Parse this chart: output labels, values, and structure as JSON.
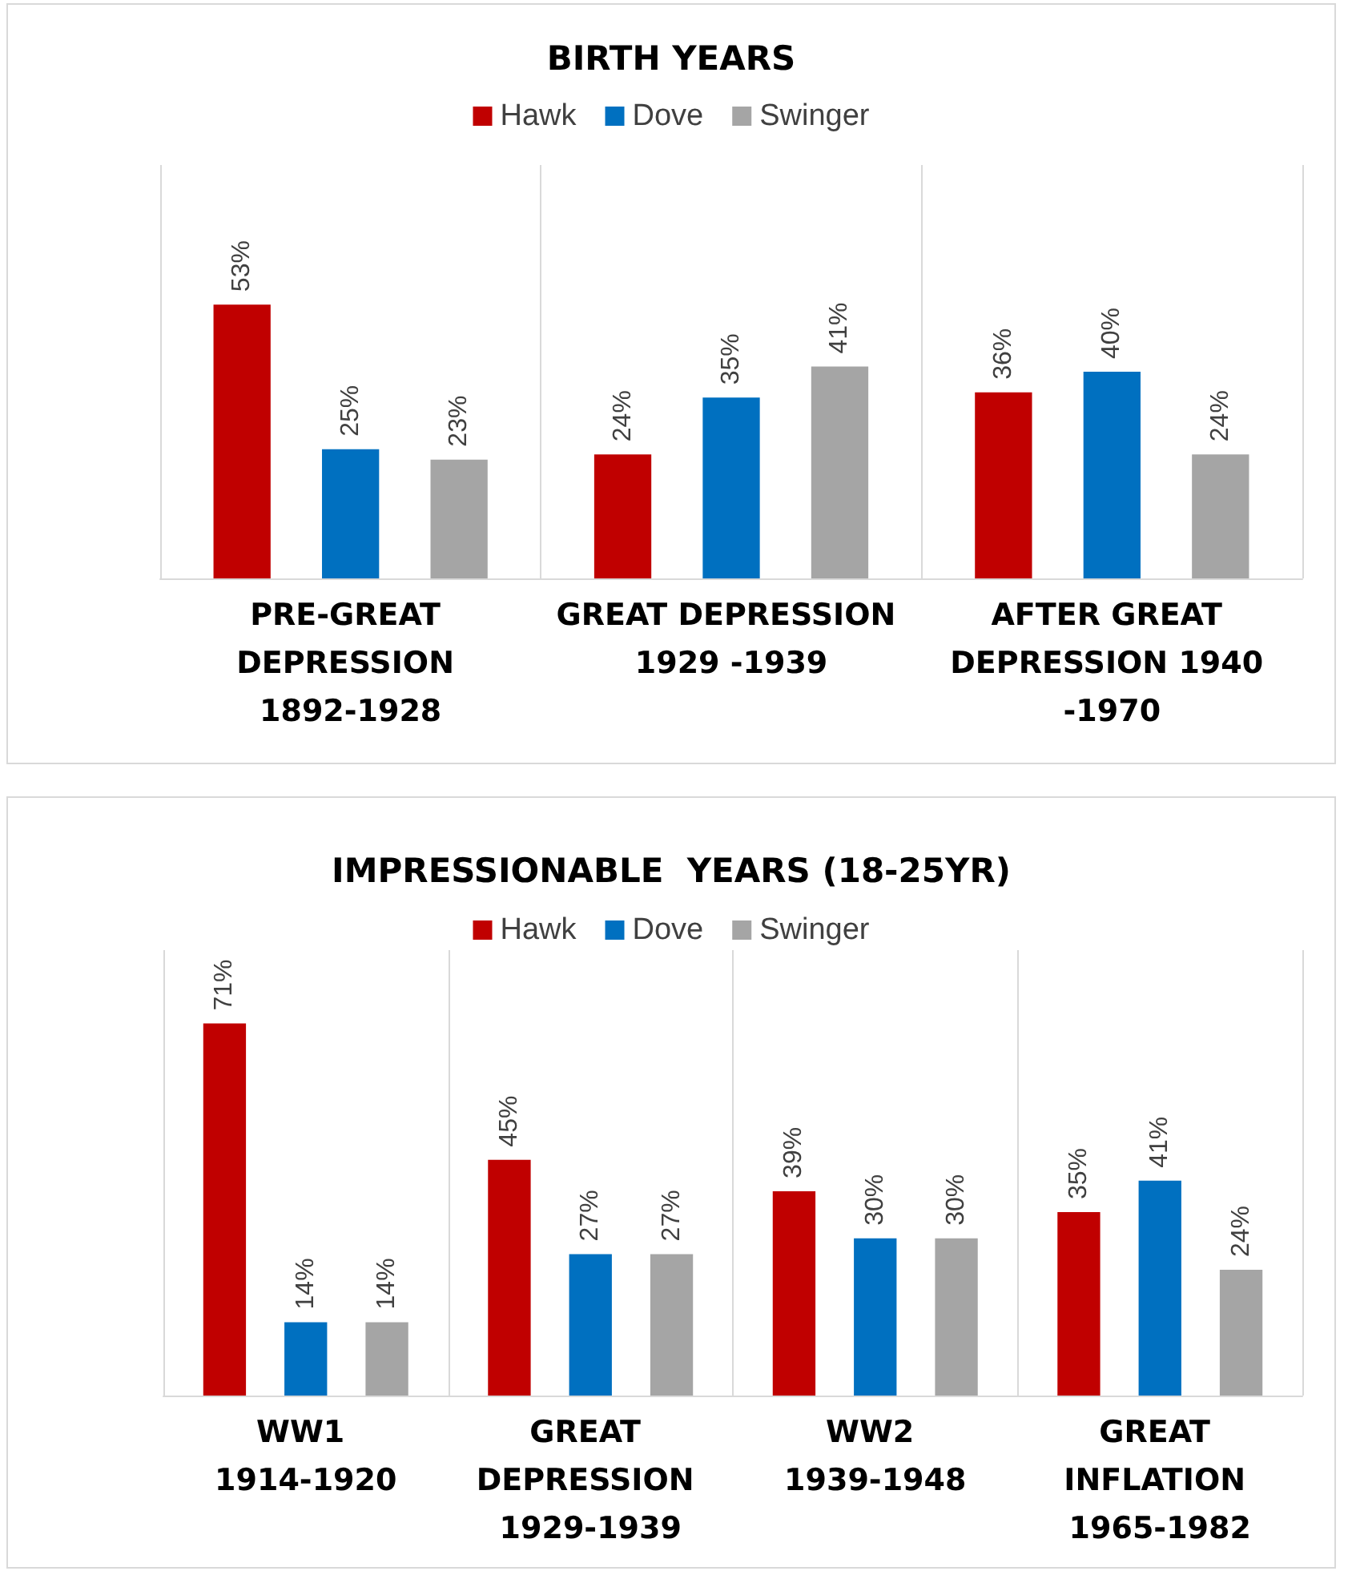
{
  "chart_data": [
    {
      "type": "bar",
      "title": "BIRTH YEARS",
      "categories": [
        "PRE-GREAT DEPRESSION 1892-1928",
        "GREAT DEPRESSION 1929 -1939",
        "AFTER GREAT DEPRESSION 1940 -1970"
      ],
      "series": [
        {
          "name": "Hawk",
          "color": "#c00000",
          "values": [
            53,
            24,
            36
          ],
          "value_labels": [
            "53%",
            "24%",
            "36%"
          ]
        },
        {
          "name": "Dove",
          "color": "#0070c0",
          "values": [
            25,
            35,
            40
          ],
          "value_labels": [
            "25%",
            "35%",
            "40%"
          ]
        },
        {
          "name": "Swinger",
          "color": "#a5a5a5",
          "values": [
            23,
            41,
            24
          ],
          "value_labels": [
            "23%",
            "41%",
            "24%"
          ]
        }
      ],
      "ylim": [
        0,
        80
      ],
      "grid": "x",
      "legend": "top",
      "tick_labels": "x"
    },
    {
      "type": "bar",
      "title": "IMPRESSIONABLE  YEARS (18-25YR)",
      "categories": [
        "WW1 1914-1920",
        "GREAT DEPRESSION 1929-1939",
        "WW2 1939-1948",
        "GREAT INFLATION 1965-1982"
      ],
      "series": [
        {
          "name": "Hawk",
          "color": "#c00000",
          "values": [
            71,
            45,
            39,
            35
          ],
          "value_labels": [
            "71%",
            "45%",
            "39%",
            "35%"
          ]
        },
        {
          "name": "Dove",
          "color": "#0070c0",
          "values": [
            14,
            27,
            30,
            41
          ],
          "value_labels": [
            "14%",
            "27%",
            "30%",
            "41%"
          ]
        },
        {
          "name": "Swinger",
          "color": "#a5a5a5",
          "values": [
            14,
            27,
            30,
            24
          ],
          "value_labels": [
            "14%",
            "27%",
            "30%",
            "24%"
          ]
        }
      ],
      "ylim": [
        0,
        85
      ],
      "grid": "x",
      "legend": "top",
      "tick_labels": "x"
    }
  ]
}
